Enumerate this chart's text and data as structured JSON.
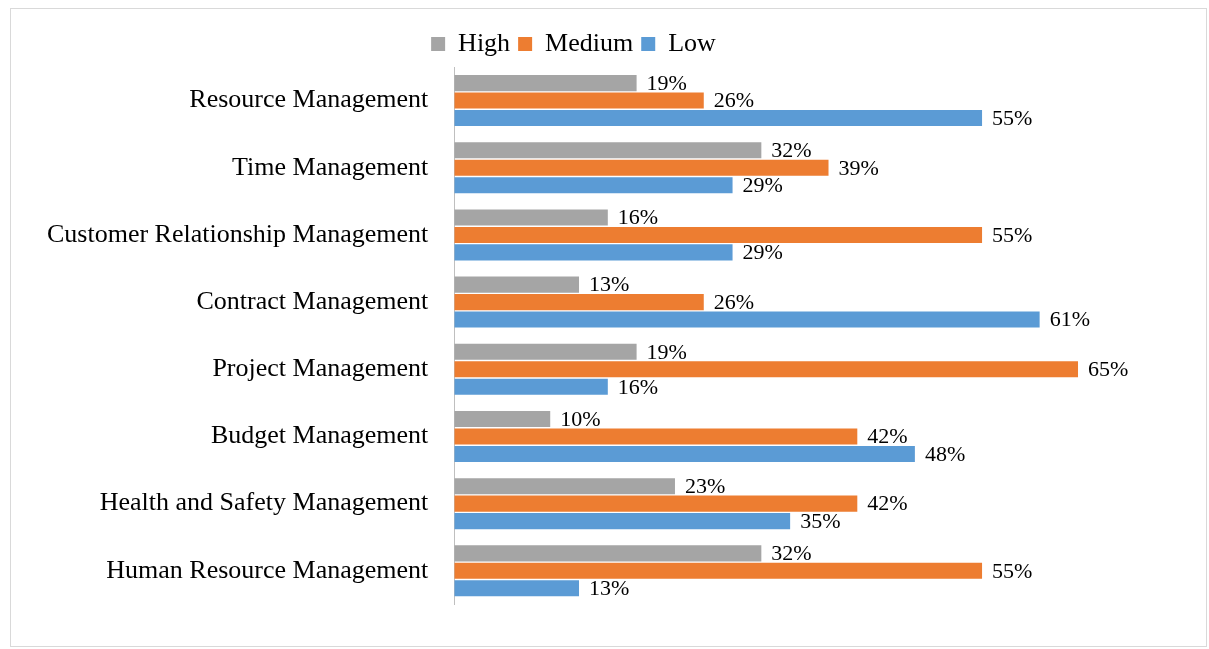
{
  "chart_data": {
    "type": "bar",
    "orientation": "horizontal",
    "categories": [
      "Resource Management",
      "Time Management",
      "Customer Relationship Management",
      "Contract Management",
      "Project Management",
      "Budget Management",
      "Health and Safety Management",
      "Human Resource Management"
    ],
    "series": [
      {
        "name": "High",
        "color": "#a5a5a5",
        "values": [
          19,
          32,
          16,
          13,
          19,
          10,
          23,
          32
        ],
        "value_labels": [
          "19%",
          "32%",
          "16%",
          "13%",
          "19%",
          "10%",
          "23%",
          "32%"
        ]
      },
      {
        "name": "Medium",
        "color": "#ed7d31",
        "values": [
          26,
          39,
          55,
          26,
          65,
          42,
          42,
          55
        ],
        "value_labels": [
          "26%",
          "39%",
          "55%",
          "26%",
          "65%",
          "42%",
          "42%",
          "55%"
        ]
      },
      {
        "name": "Low",
        "color": "#5b9bd5",
        "values": [
          55,
          29,
          29,
          61,
          16,
          48,
          35,
          13
        ],
        "value_labels": [
          "55%",
          "29%",
          "29%",
          "61%",
          "16%",
          "48%",
          "35%",
          "13%"
        ]
      }
    ],
    "tick_labels": "y",
    "grid": false,
    "legend": "top"
  }
}
